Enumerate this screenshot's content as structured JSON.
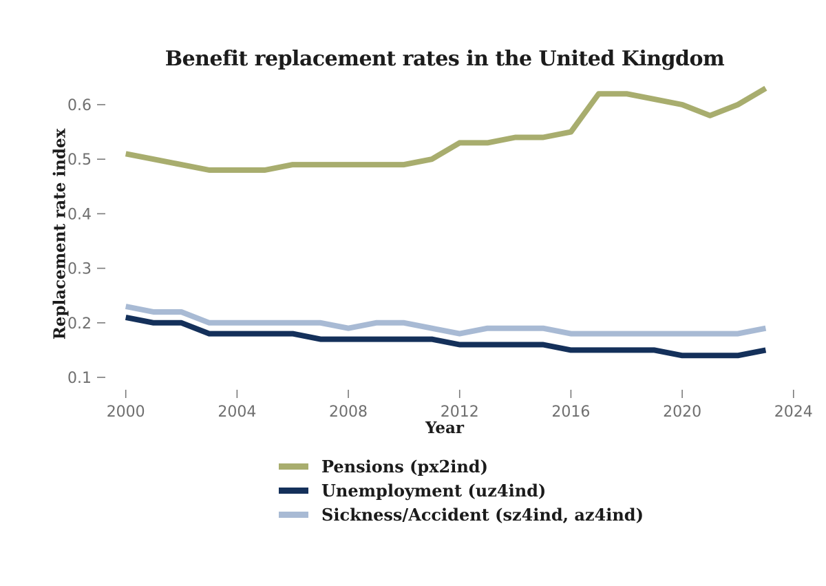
{
  "title": "Benefit replacement rates in the United Kingdom",
  "colors": {
    "pensions_line": "#a8ad6e",
    "unemployment_line": "#14305a",
    "sickness_line": "#a8bad4",
    "tick_mark": "#7a7a7a",
    "tick_label_text": "#6f6f6f",
    "title_text": "#1c1c1c"
  },
  "chart_data": {
    "type": "line",
    "title": "Benefit replacement rates in the United Kingdom",
    "xlabel": "Year",
    "ylabel": "Replacement rate index",
    "xlim": [
      2000,
      2024
    ],
    "ylim": [
      0.1,
      0.6
    ],
    "grid": false,
    "legend_position": "bottom",
    "x_tick_labels": [
      "2000",
      "2004",
      "2008",
      "2012",
      "2016",
      "2020",
      "2024"
    ],
    "y_tick_labels": [
      "0.1",
      "0.2",
      "0.3",
      "0.4",
      "0.5",
      "0.6"
    ],
    "x": [
      2000,
      2001,
      2002,
      2003,
      2004,
      2005,
      2006,
      2007,
      2008,
      2009,
      2010,
      2011,
      2012,
      2013,
      2014,
      2015,
      2016,
      2017,
      2018,
      2019,
      2020,
      2021,
      2022,
      2023
    ],
    "series": [
      {
        "key": "pensions",
        "name": "Pensions (px2ind)",
        "color": "#a8ad6e",
        "values": [
          0.51,
          0.5,
          0.49,
          0.48,
          0.48,
          0.48,
          0.49,
          0.49,
          0.49,
          0.49,
          0.49,
          0.5,
          0.53,
          0.53,
          0.54,
          0.54,
          0.55,
          0.62,
          0.62,
          0.61,
          0.6,
          0.58,
          0.6,
          0.63
        ]
      },
      {
        "key": "unemployment",
        "name": "Unemployment (uz4ind)",
        "color": "#14305a",
        "values": [
          0.21,
          0.2,
          0.2,
          0.18,
          0.18,
          0.18,
          0.18,
          0.17,
          0.17,
          0.17,
          0.17,
          0.17,
          0.16,
          0.16,
          0.16,
          0.16,
          0.15,
          0.15,
          0.15,
          0.15,
          0.14,
          0.14,
          0.14,
          0.15
        ]
      },
      {
        "key": "sickness",
        "name": "Sickness/Accident (sz4ind, az4ind)",
        "color": "#a8bad4",
        "values": [
          0.23,
          0.22,
          0.22,
          0.2,
          0.2,
          0.2,
          0.2,
          0.2,
          0.19,
          0.2,
          0.2,
          0.19,
          0.18,
          0.19,
          0.19,
          0.19,
          0.18,
          0.18,
          0.18,
          0.18,
          0.18,
          0.18,
          0.18,
          0.19
        ]
      }
    ]
  }
}
